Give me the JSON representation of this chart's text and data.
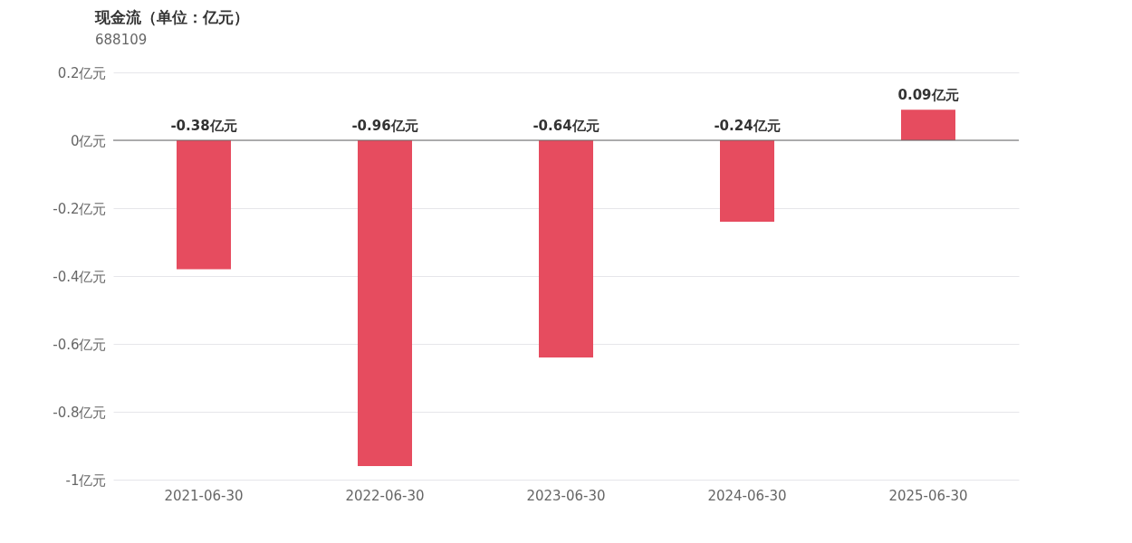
{
  "chart_data": {
    "type": "bar",
    "title": "现金流（单位：亿元）",
    "subtitle": "688109",
    "categories": [
      "2021-06-30",
      "2022-06-30",
      "2023-06-30",
      "2024-06-30",
      "2025-06-30"
    ],
    "values": [
      -0.38,
      -0.96,
      -0.64,
      -0.24,
      0.09
    ],
    "value_labels": [
      "-0.38亿元",
      "-0.96亿元",
      "-0.64亿元",
      "-0.24亿元",
      "0.09亿元"
    ],
    "color": "#e64c5f",
    "ylim": [
      -1,
      0.2
    ],
    "yticks": [
      {
        "value": 0.2,
        "label": "0.2亿元"
      },
      {
        "value": 0,
        "label": "0亿元"
      },
      {
        "value": -0.2,
        "label": "-0.2亿元"
      },
      {
        "value": -0.4,
        "label": "-0.4亿元"
      },
      {
        "value": -0.6,
        "label": "-0.6亿元"
      },
      {
        "value": -0.8,
        "label": "-0.8亿元"
      },
      {
        "value": -1,
        "label": "-1亿元"
      }
    ],
    "grid": "y"
  }
}
